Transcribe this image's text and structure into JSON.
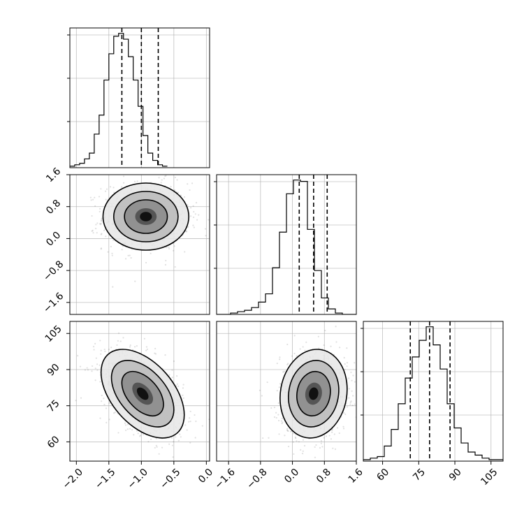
{
  "chart_data": {
    "type": "corner",
    "parameters": [
      {
        "ticks": [
          -2.0,
          -1.5,
          -1.0,
          -0.5,
          0.0
        ],
        "tick_labels": [
          "−2.0",
          "−1.5",
          "−1.0",
          "−0.5",
          "0.0"
        ],
        "range": [
          -2.1,
          0.05
        ]
      },
      {
        "ticks": [
          -1.6,
          -0.8,
          0.0,
          0.8,
          1.6
        ],
        "tick_labels": [
          "−1.6",
          "−0.8",
          "0.0",
          "0.8",
          "1.6"
        ],
        "range": [
          -1.9,
          1.6
        ]
      },
      {
        "ticks": [
          60,
          75,
          90,
          105
        ],
        "tick_labels": [
          "60",
          "75",
          "90",
          "105"
        ],
        "range": [
          52,
          110
        ]
      }
    ],
    "quantiles": [
      [
        -1.3,
        -1.0,
        -0.74
      ],
      [
        0.17,
        0.53,
        0.87
      ],
      [
        71.5,
        79.5,
        88
      ]
    ],
    "histograms": [
      {
        "bin_edges_start": -2.1,
        "bin_width": 0.075,
        "counts": [
          1,
          2,
          3,
          6,
          10,
          23,
          36,
          60,
          78,
          90,
          92,
          88,
          76,
          60,
          42,
          22,
          10,
          5,
          2,
          1
        ]
      },
      {
        "bin_edges_start": -1.9,
        "bin_width": 0.175,
        "counts": [
          0,
          0,
          1,
          2,
          3,
          5,
          9,
          15,
          34,
          60,
          88,
          98,
          97,
          62,
          32,
          12,
          4,
          1,
          0,
          0
        ]
      },
      {
        "bin_edges_start": 52,
        "bin_width": 2.9,
        "counts": [
          1,
          2,
          3,
          10,
          21,
          38,
          55,
          69,
          80,
          89,
          77,
          61,
          38,
          22,
          12,
          6,
          4,
          2,
          1,
          1
        ]
      }
    ],
    "pairs": [
      {
        "x_param": 0,
        "y_param": 1,
        "mean": [
          -0.93,
          0.55
        ],
        "sd": [
          0.33,
          0.42
        ],
        "corr": 0.0,
        "n_points": 900
      },
      {
        "x_param": 0,
        "y_param": 2,
        "mean": [
          -0.98,
          80
        ],
        "sd": [
          0.32,
          9.2
        ],
        "corr": -0.48,
        "n_points": 900
      },
      {
        "x_param": 1,
        "y_param": 2,
        "mean": [
          0.53,
          80
        ],
        "sd": [
          0.42,
          9.2
        ],
        "corr": 0.1,
        "n_points": 900
      }
    ],
    "contour_levels_sigma": [
      0.5,
      1.0,
      1.5,
      2.0
    ],
    "grid": true
  }
}
